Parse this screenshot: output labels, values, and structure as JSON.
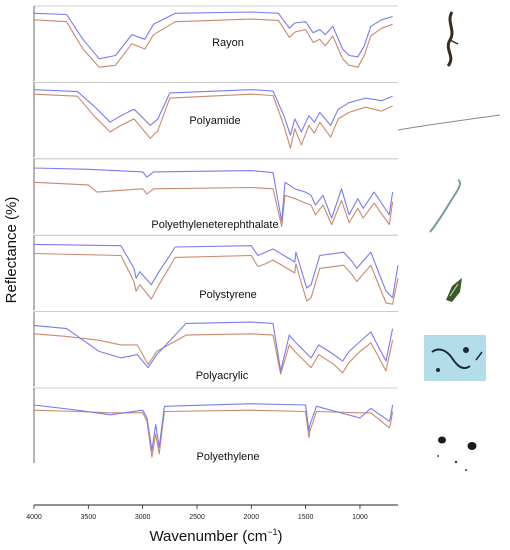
{
  "figure": {
    "xlabel_main": "Wavenumber (cm",
    "xlabel_sup": "−1",
    "xlabel_end": ")",
    "ylabel": "Reflectance (%)"
  },
  "chart_data": {
    "type": "line",
    "x_axis": {
      "label": "Wavenumber (cm−1)",
      "range": [
        4000,
        650
      ],
      "reversed": true,
      "ticks": [
        4000,
        3500,
        3000,
        2500,
        2000,
        1500,
        1000
      ]
    },
    "y_axis": {
      "label": "Reflectance (%)",
      "ticks_shown": false
    },
    "grid": false,
    "colors": {
      "series_a": "#7b7bef",
      "series_b": "#c98a6e"
    },
    "panels": [
      {
        "label": "Rayon",
        "sample_image": "dark-fiber",
        "series_a": [
          [
            4000,
            0.95
          ],
          [
            3700,
            0.93
          ],
          [
            3550,
            0.55
          ],
          [
            3400,
            0.25
          ],
          [
            3250,
            0.3
          ],
          [
            3100,
            0.62
          ],
          [
            2980,
            0.55
          ],
          [
            2900,
            0.78
          ],
          [
            2700,
            0.95
          ],
          [
            2000,
            0.97
          ],
          [
            1750,
            0.95
          ],
          [
            1650,
            0.72
          ],
          [
            1600,
            0.8
          ],
          [
            1500,
            0.82
          ],
          [
            1430,
            0.65
          ],
          [
            1370,
            0.7
          ],
          [
            1320,
            0.62
          ],
          [
            1250,
            0.75
          ],
          [
            1160,
            0.4
          ],
          [
            1100,
            0.3
          ],
          [
            1020,
            0.28
          ],
          [
            960,
            0.45
          ],
          [
            900,
            0.75
          ],
          [
            800,
            0.85
          ],
          [
            700,
            0.9
          ]
        ],
        "series_b": [
          [
            4000,
            0.85
          ],
          [
            3700,
            0.82
          ],
          [
            3550,
            0.4
          ],
          [
            3400,
            0.12
          ],
          [
            3250,
            0.15
          ],
          [
            3100,
            0.48
          ],
          [
            2980,
            0.4
          ],
          [
            2900,
            0.62
          ],
          [
            2700,
            0.82
          ],
          [
            2000,
            0.86
          ],
          [
            1750,
            0.84
          ],
          [
            1650,
            0.58
          ],
          [
            1600,
            0.66
          ],
          [
            1500,
            0.7
          ],
          [
            1430,
            0.5
          ],
          [
            1370,
            0.55
          ],
          [
            1320,
            0.45
          ],
          [
            1250,
            0.6
          ],
          [
            1160,
            0.25
          ],
          [
            1100,
            0.15
          ],
          [
            1020,
            0.12
          ],
          [
            960,
            0.3
          ],
          [
            900,
            0.6
          ],
          [
            800,
            0.72
          ],
          [
            700,
            0.78
          ]
        ]
      },
      {
        "label": "Polyamide",
        "sample_image": "thin-fiber",
        "series_a": [
          [
            4000,
            0.95
          ],
          [
            3600,
            0.92
          ],
          [
            3450,
            0.7
          ],
          [
            3300,
            0.45
          ],
          [
            3200,
            0.55
          ],
          [
            3080,
            0.65
          ],
          [
            2930,
            0.4
          ],
          [
            2860,
            0.5
          ],
          [
            2750,
            0.9
          ],
          [
            2000,
            0.95
          ],
          [
            1800,
            0.93
          ],
          [
            1700,
            0.55
          ],
          [
            1640,
            0.25
          ],
          [
            1600,
            0.5
          ],
          [
            1540,
            0.3
          ],
          [
            1470,
            0.55
          ],
          [
            1420,
            0.45
          ],
          [
            1370,
            0.6
          ],
          [
            1270,
            0.4
          ],
          [
            1200,
            0.65
          ],
          [
            1100,
            0.75
          ],
          [
            950,
            0.82
          ],
          [
            800,
            0.78
          ],
          [
            700,
            0.85
          ]
        ],
        "series_b": [
          [
            4000,
            0.88
          ],
          [
            3600,
            0.85
          ],
          [
            3450,
            0.55
          ],
          [
            3300,
            0.3
          ],
          [
            3200,
            0.4
          ],
          [
            3080,
            0.5
          ],
          [
            2930,
            0.2
          ],
          [
            2860,
            0.32
          ],
          [
            2750,
            0.82
          ],
          [
            2000,
            0.88
          ],
          [
            1800,
            0.86
          ],
          [
            1700,
            0.4
          ],
          [
            1640,
            0.05
          ],
          [
            1600,
            0.35
          ],
          [
            1540,
            0.1
          ],
          [
            1470,
            0.4
          ],
          [
            1420,
            0.28
          ],
          [
            1370,
            0.45
          ],
          [
            1270,
            0.22
          ],
          [
            1200,
            0.5
          ],
          [
            1100,
            0.6
          ],
          [
            950,
            0.68
          ],
          [
            800,
            0.62
          ],
          [
            700,
            0.7
          ]
        ]
      },
      {
        "label": "Polyethyleneterephthalate",
        "sample_image": "curled-fiber",
        "series_a": [
          [
            4000,
            0.92
          ],
          [
            3500,
            0.9
          ],
          [
            3000,
            0.86
          ],
          [
            2960,
            0.78
          ],
          [
            2900,
            0.86
          ],
          [
            2000,
            0.88
          ],
          [
            1800,
            0.85
          ],
          [
            1720,
            0.1
          ],
          [
            1690,
            0.7
          ],
          [
            1600,
            0.6
          ],
          [
            1500,
            0.55
          ],
          [
            1450,
            0.5
          ],
          [
            1410,
            0.35
          ],
          [
            1340,
            0.5
          ],
          [
            1260,
            0.15
          ],
          [
            1170,
            0.6
          ],
          [
            1100,
            0.2
          ],
          [
            1020,
            0.45
          ],
          [
            970,
            0.3
          ],
          [
            870,
            0.55
          ],
          [
            730,
            0.2
          ],
          [
            700,
            0.55
          ]
        ],
        "series_b": [
          [
            4000,
            0.7
          ],
          [
            3500,
            0.66
          ],
          [
            3420,
            0.55
          ],
          [
            3000,
            0.6
          ],
          [
            2960,
            0.52
          ],
          [
            2900,
            0.6
          ],
          [
            2000,
            0.62
          ],
          [
            1800,
            0.6
          ],
          [
            1720,
            0.02
          ],
          [
            1690,
            0.5
          ],
          [
            1600,
            0.45
          ],
          [
            1500,
            0.38
          ],
          [
            1450,
            0.35
          ],
          [
            1410,
            0.2
          ],
          [
            1340,
            0.35
          ],
          [
            1260,
            0.05
          ],
          [
            1170,
            0.42
          ],
          [
            1100,
            0.08
          ],
          [
            1020,
            0.3
          ],
          [
            970,
            0.15
          ],
          [
            870,
            0.38
          ],
          [
            730,
            0.05
          ],
          [
            700,
            0.4
          ]
        ]
      },
      {
        "label": "Polystyrene",
        "sample_image": "fragment",
        "series_a": [
          [
            4000,
            0.92
          ],
          [
            3200,
            0.9
          ],
          [
            3080,
            0.55
          ],
          [
            3060,
            0.4
          ],
          [
            3025,
            0.5
          ],
          [
            2920,
            0.3
          ],
          [
            2850,
            0.5
          ],
          [
            2700,
            0.88
          ],
          [
            2000,
            0.9
          ],
          [
            1940,
            0.75
          ],
          [
            1870,
            0.8
          ],
          [
            1800,
            0.85
          ],
          [
            1600,
            0.65
          ],
          [
            1590,
            0.8
          ],
          [
            1490,
            0.25
          ],
          [
            1450,
            0.3
          ],
          [
            1370,
            0.75
          ],
          [
            1150,
            0.8
          ],
          [
            1070,
            0.65
          ],
          [
            1030,
            0.55
          ],
          [
            900,
            0.8
          ],
          [
            760,
            0.2
          ],
          [
            700,
            0.1
          ],
          [
            650,
            0.6
          ]
        ],
        "series_b": [
          [
            4000,
            0.78
          ],
          [
            3200,
            0.75
          ],
          [
            3080,
            0.35
          ],
          [
            3060,
            0.2
          ],
          [
            3025,
            0.3
          ],
          [
            2920,
            0.08
          ],
          [
            2850,
            0.3
          ],
          [
            2700,
            0.72
          ],
          [
            2000,
            0.75
          ],
          [
            1940,
            0.58
          ],
          [
            1870,
            0.62
          ],
          [
            1800,
            0.68
          ],
          [
            1600,
            0.48
          ],
          [
            1590,
            0.62
          ],
          [
            1490,
            0.05
          ],
          [
            1450,
            0.1
          ],
          [
            1370,
            0.55
          ],
          [
            1150,
            0.6
          ],
          [
            1070,
            0.45
          ],
          [
            1030,
            0.35
          ],
          [
            900,
            0.6
          ],
          [
            760,
            0.02
          ],
          [
            700,
            0.0
          ],
          [
            650,
            0.4
          ]
        ]
      },
      {
        "label": "Polyacrylic",
        "sample_image": "blue-particles",
        "series_a": [
          [
            4000,
            0.85
          ],
          [
            3700,
            0.8
          ],
          [
            3400,
            0.45
          ],
          [
            3200,
            0.35
          ],
          [
            3050,
            0.4
          ],
          [
            2950,
            0.2
          ],
          [
            2870,
            0.4
          ],
          [
            2600,
            0.88
          ],
          [
            2000,
            0.9
          ],
          [
            1800,
            0.88
          ],
          [
            1730,
            0.15
          ],
          [
            1650,
            0.7
          ],
          [
            1600,
            0.6
          ],
          [
            1450,
            0.35
          ],
          [
            1380,
            0.55
          ],
          [
            1240,
            0.4
          ],
          [
            1160,
            0.3
          ],
          [
            1100,
            0.45
          ],
          [
            1000,
            0.6
          ],
          [
            900,
            0.75
          ],
          [
            840,
            0.55
          ],
          [
            760,
            0.3
          ],
          [
            700,
            0.8
          ]
        ],
        "series_b": [
          [
            4000,
            0.72
          ],
          [
            3700,
            0.68
          ],
          [
            3400,
            0.62
          ],
          [
            3200,
            0.55
          ],
          [
            3050,
            0.55
          ],
          [
            2950,
            0.25
          ],
          [
            2870,
            0.45
          ],
          [
            2600,
            0.7
          ],
          [
            2000,
            0.72
          ],
          [
            1800,
            0.7
          ],
          [
            1730,
            0.1
          ],
          [
            1650,
            0.55
          ],
          [
            1600,
            0.45
          ],
          [
            1450,
            0.2
          ],
          [
            1380,
            0.4
          ],
          [
            1240,
            0.25
          ],
          [
            1160,
            0.12
          ],
          [
            1100,
            0.28
          ],
          [
            1000,
            0.45
          ],
          [
            900,
            0.58
          ],
          [
            840,
            0.4
          ],
          [
            760,
            0.15
          ],
          [
            700,
            0.62
          ]
        ]
      },
      {
        "label": "Polyethylene",
        "sample_image": "black-particles",
        "series_a": [
          [
            4000,
            0.8
          ],
          [
            3600,
            0.72
          ],
          [
            3300,
            0.65
          ],
          [
            3000,
            0.72
          ],
          [
            2960,
            0.6
          ],
          [
            2915,
            0.1
          ],
          [
            2880,
            0.5
          ],
          [
            2848,
            0.15
          ],
          [
            2800,
            0.78
          ],
          [
            2000,
            0.82
          ],
          [
            1500,
            0.8
          ],
          [
            1470,
            0.4
          ],
          [
            1460,
            0.5
          ],
          [
            1400,
            0.78
          ],
          [
            1000,
            0.6
          ],
          [
            900,
            0.75
          ],
          [
            730,
            0.55
          ],
          [
            720,
            0.6
          ],
          [
            700,
            0.8
          ]
        ],
        "series_b": [
          [
            4000,
            0.72
          ],
          [
            3600,
            0.7
          ],
          [
            3300,
            0.68
          ],
          [
            3000,
            0.68
          ],
          [
            2960,
            0.55
          ],
          [
            2915,
            0.0
          ],
          [
            2880,
            0.35
          ],
          [
            2848,
            0.05
          ],
          [
            2800,
            0.7
          ],
          [
            2000,
            0.72
          ],
          [
            1500,
            0.7
          ],
          [
            1470,
            0.3
          ],
          [
            1460,
            0.4
          ],
          [
            1400,
            0.7
          ],
          [
            1000,
            0.68
          ],
          [
            900,
            0.68
          ],
          [
            730,
            0.45
          ],
          [
            720,
            0.5
          ],
          [
            700,
            0.7
          ]
        ]
      }
    ]
  }
}
